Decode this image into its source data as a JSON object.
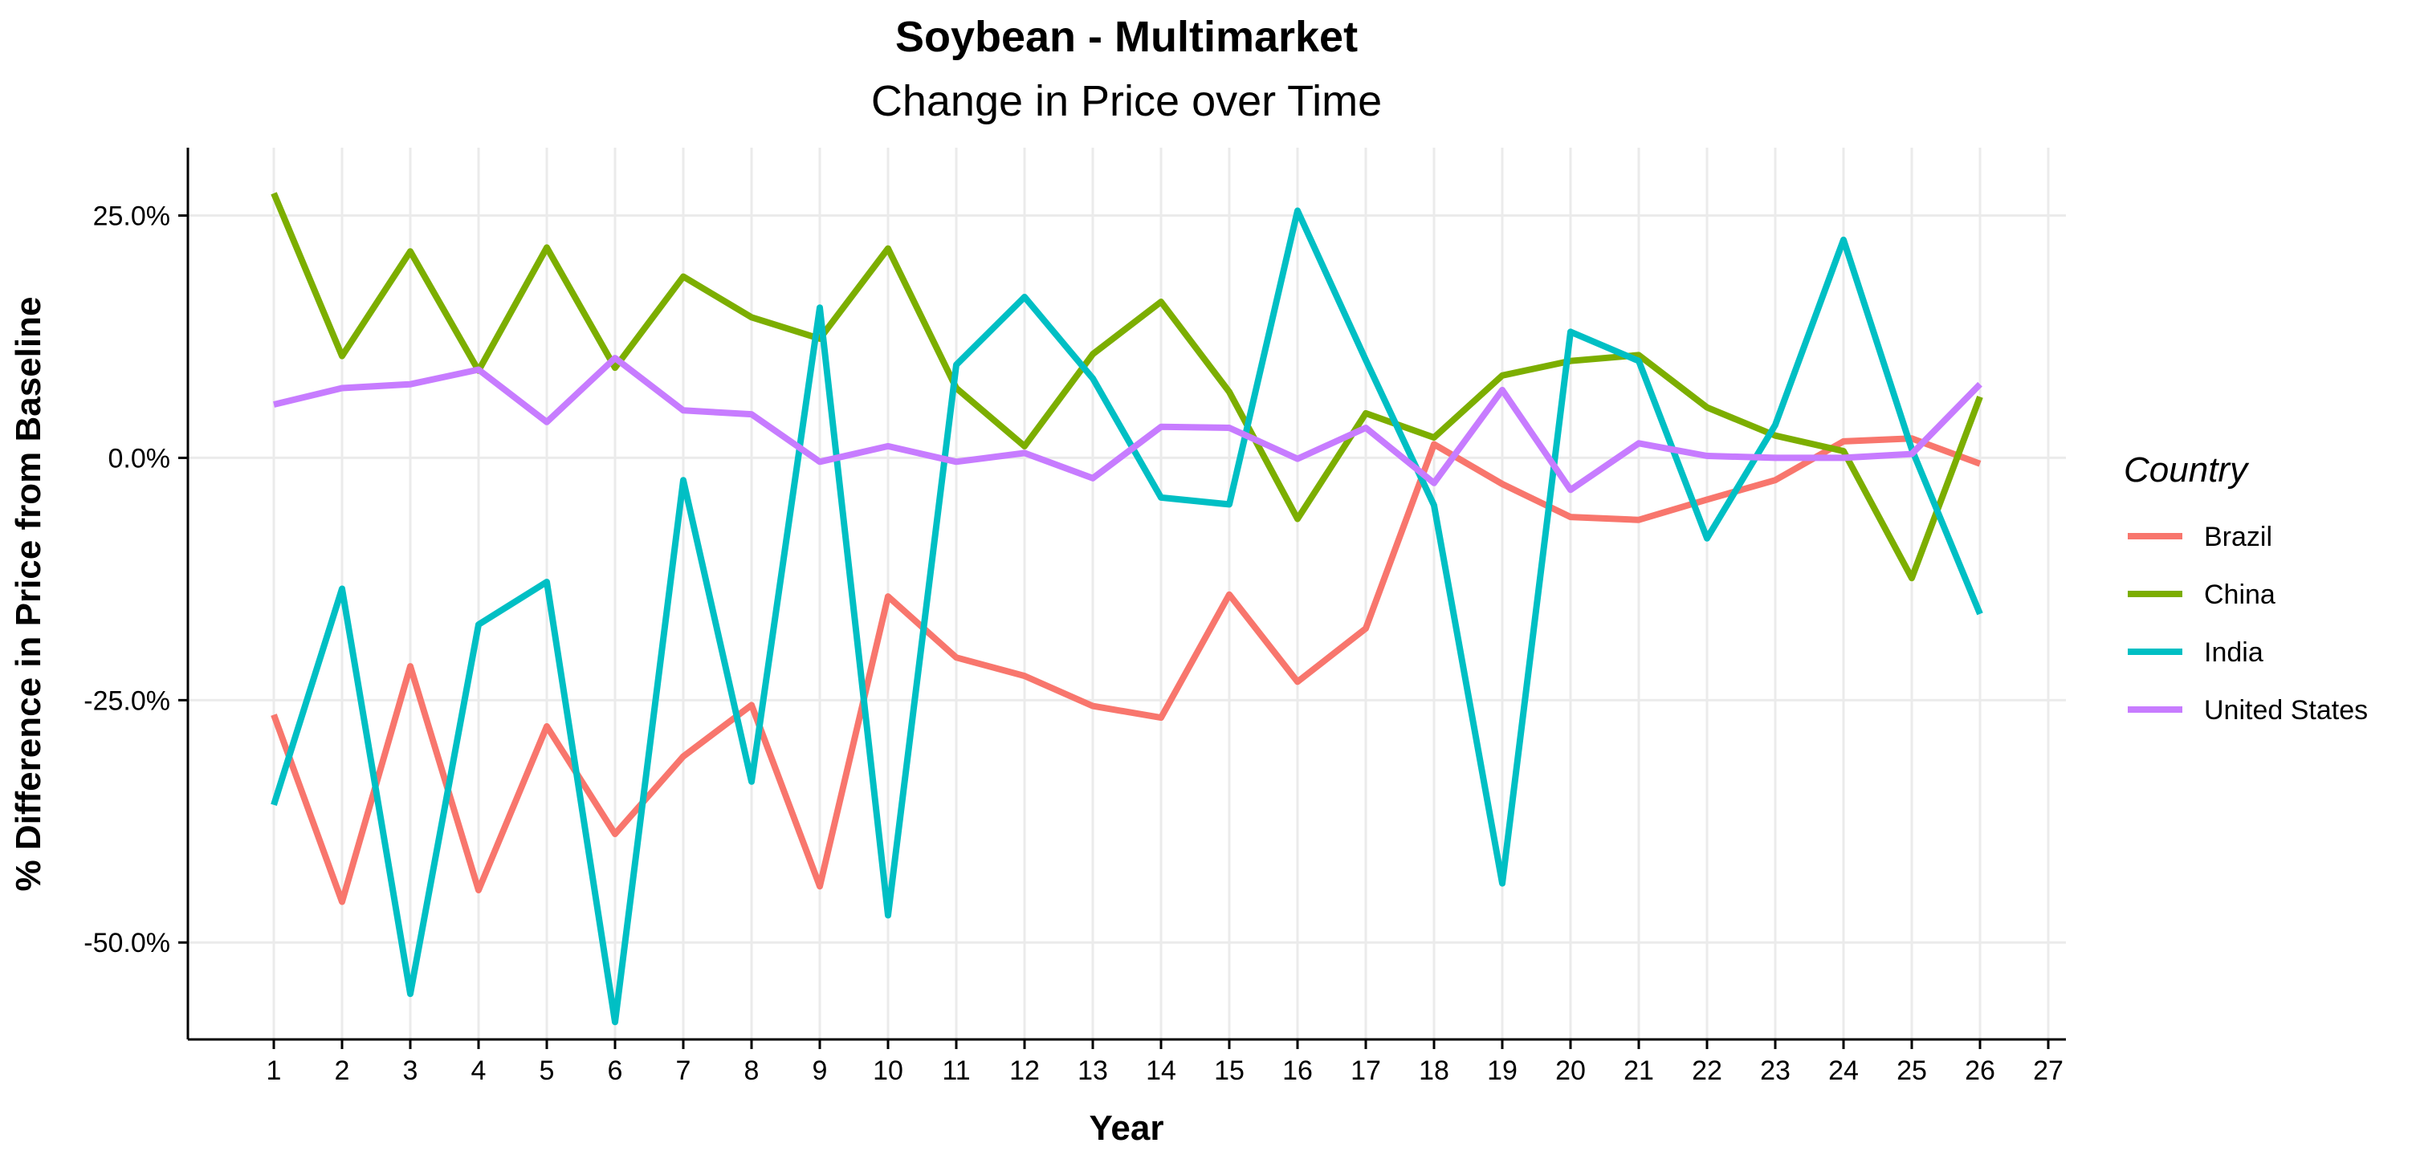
{
  "chart_data": {
    "type": "line",
    "title": "Soybean - Multimarket",
    "subtitle": "Change in Price over Time",
    "xlabel": "Year",
    "ylabel": "% Difference in Price from Baseline",
    "x": [
      1,
      2,
      3,
      4,
      5,
      6,
      7,
      8,
      9,
      10,
      11,
      12,
      13,
      14,
      15,
      16,
      17,
      18,
      19,
      20,
      21,
      22,
      23,
      24,
      25,
      26
    ],
    "x_ticks": [
      "1",
      "2",
      "3",
      "4",
      "5",
      "6",
      "7",
      "8",
      "9",
      "10",
      "11",
      "12",
      "13",
      "14",
      "15",
      "16",
      "17",
      "18",
      "19",
      "20",
      "21",
      "22",
      "23",
      "24",
      "25",
      "26",
      "27"
    ],
    "xlim": [
      1,
      27
    ],
    "ylim": [
      -60,
      32
    ],
    "y_ticks": [
      25,
      0,
      -25,
      -50
    ],
    "y_tick_labels": [
      "25.0%",
      "0.0%",
      "-25.0%",
      "-50.0%"
    ],
    "grid": true,
    "legend_title": "Country",
    "legend_position": "right",
    "series": [
      {
        "name": "Brazil",
        "color": "#F8766D",
        "values": [
          -26.5,
          -45.8,
          -21.5,
          -44.6,
          -27.7,
          -38.8,
          -30.8,
          -25.5,
          -44.2,
          -14.3,
          -20.6,
          -22.5,
          -25.6,
          -26.8,
          -14.1,
          -23.1,
          -17.6,
          1.4,
          -2.7,
          -6.1,
          -6.4,
          -4.3,
          -2.3,
          1.7,
          2.0,
          -0.6
        ]
      },
      {
        "name": "China",
        "color": "#7CAE00",
        "values": [
          27.3,
          10.5,
          21.3,
          9.0,
          21.7,
          9.3,
          18.7,
          14.5,
          12.3,
          21.6,
          7.2,
          1.2,
          10.7,
          16.1,
          6.8,
          -6.3,
          4.6,
          2.1,
          8.5,
          10.0,
          10.6,
          5.2,
          2.3,
          0.7,
          -12.4,
          6.3
        ]
      },
      {
        "name": "India",
        "color": "#00BFC4",
        "values": [
          -35.8,
          -13.5,
          -55.3,
          -17.2,
          -12.8,
          -58.2,
          -2.3,
          -33.4,
          15.5,
          -47.2,
          9.6,
          16.6,
          8.2,
          -4.1,
          -4.8,
          25.5,
          10.1,
          -4.9,
          -43.9,
          13.0,
          10.0,
          -8.3,
          3.4,
          22.5,
          0.9,
          -16.1
        ]
      },
      {
        "name": "United States",
        "color": "#C77CFF",
        "values": [
          5.5,
          7.2,
          7.6,
          9.1,
          3.7,
          10.3,
          4.9,
          4.5,
          -0.4,
          1.2,
          -0.4,
          0.5,
          -2.1,
          3.2,
          3.1,
          -0.1,
          3.1,
          -2.6,
          7.0,
          -3.3,
          1.5,
          0.2,
          0.0,
          0.0,
          0.4,
          7.6
        ]
      }
    ]
  }
}
